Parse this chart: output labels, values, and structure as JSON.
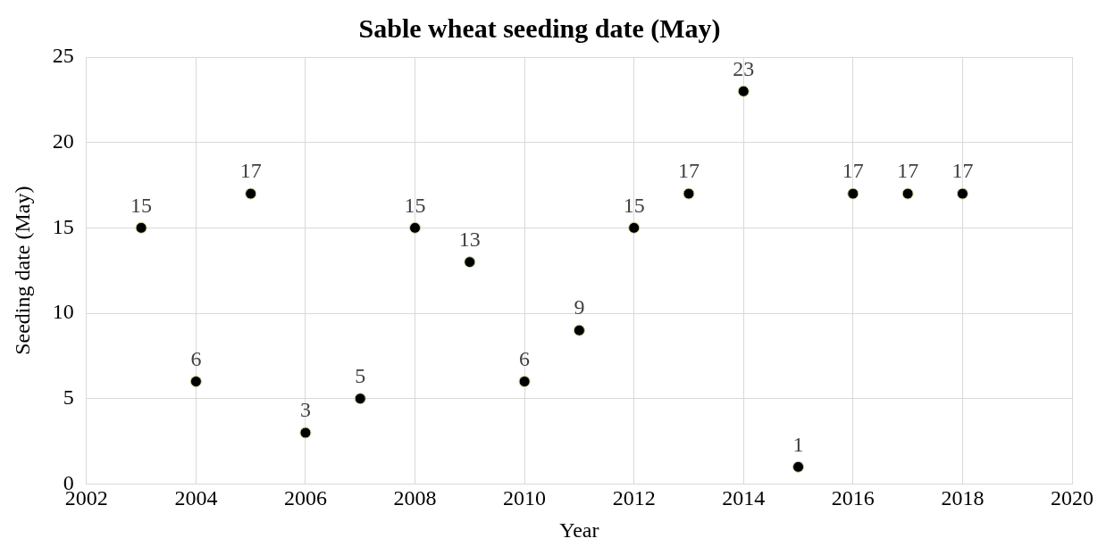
{
  "chart_data": {
    "type": "scatter",
    "title": "Sable wheat seeding date (May)",
    "xlabel": "Year",
    "ylabel": "Seeding date (May)",
    "x": [
      2003,
      2004,
      2005,
      2006,
      2007,
      2008,
      2009,
      2010,
      2011,
      2012,
      2013,
      2014,
      2015,
      2016,
      2017,
      2018
    ],
    "series": [
      {
        "color": "#000000",
        "values": [
          15,
          6,
          17,
          3,
          5,
          15,
          13,
          6,
          9,
          15,
          17,
          23,
          1,
          17,
          17,
          17
        ]
      }
    ],
    "xlim": [
      2002,
      2020
    ],
    "xticks": [
      2002,
      2004,
      2006,
      2008,
      2010,
      2012,
      2014,
      2016,
      2018,
      2020
    ],
    "ylim": [
      0,
      25
    ],
    "yticks": [
      0,
      5,
      10,
      15,
      20,
      25
    ],
    "grid": true,
    "legend": false,
    "marker": "circle",
    "data_labels": true
  }
}
